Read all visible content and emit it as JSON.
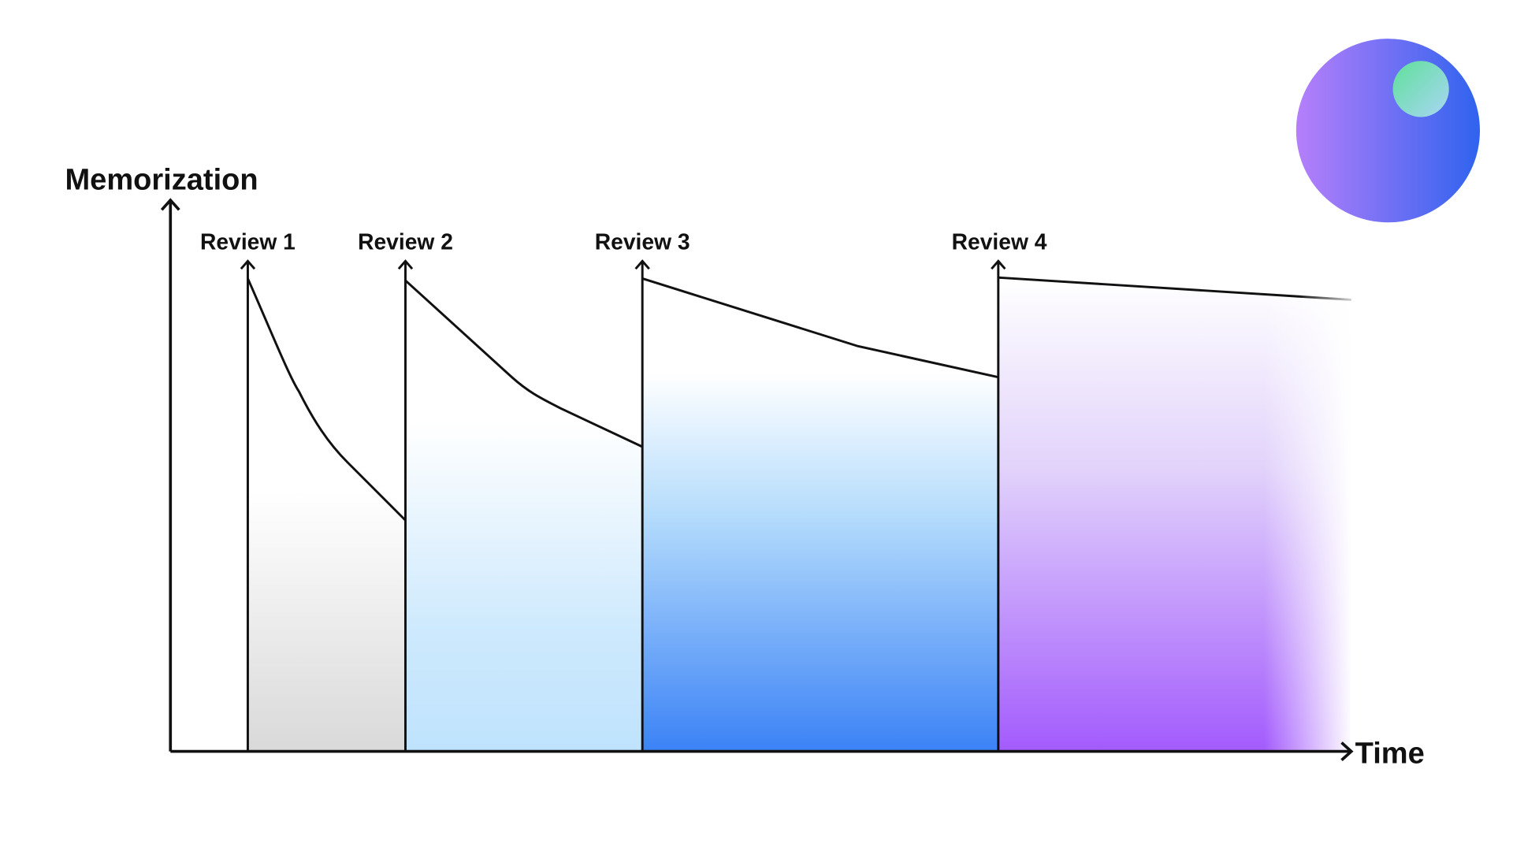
{
  "axes": {
    "y_label": "Memorization",
    "x_label": "Time"
  },
  "reviews": [
    {
      "label": "Review 1"
    },
    {
      "label": "Review 2"
    },
    {
      "label": "Review 3"
    },
    {
      "label": "Review 4"
    }
  ]
}
